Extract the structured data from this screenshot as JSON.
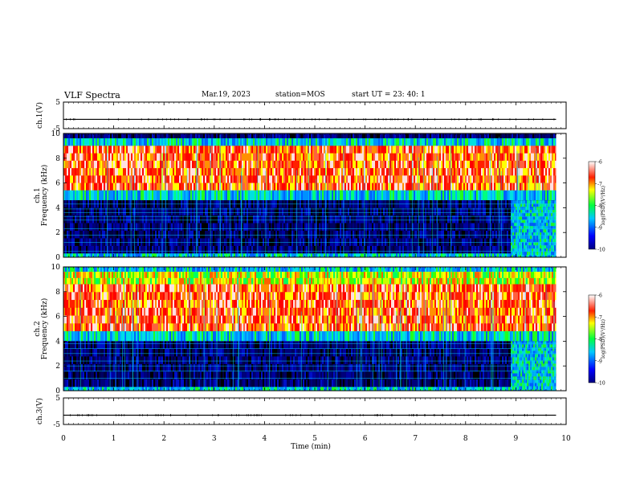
{
  "header": {
    "title": "VLF Spectra",
    "date": "Mar.19, 2023",
    "station": "station=MOS",
    "start": "start  UT  =   23: 40: 1"
  },
  "chart_data": [
    {
      "type": "line",
      "panel": "waveform-ch1",
      "ylabel": "ch.1(V)",
      "ylim": [
        -5,
        5
      ],
      "yticks": [
        "5",
        "-5"
      ],
      "xlim": [
        0,
        10
      ],
      "series": [
        {
          "x": [
            0,
            9.8
          ],
          "values": [
            -1.5,
            -1.5
          ]
        }
      ]
    },
    {
      "type": "heatmap",
      "panel": "spectrogram-ch1",
      "ylabel": "ch.1 Frequency (kHz)",
      "ylim": [
        0,
        10
      ],
      "yticks": [
        "0",
        "2",
        "4",
        "6",
        "8",
        "10"
      ],
      "xlim": [
        0,
        10
      ],
      "data_xmax": 9.8,
      "bands": [
        {
          "f0": 9.6,
          "f1": 10.0,
          "level": "low"
        },
        {
          "f0": 9.0,
          "f1": 9.6,
          "level": "mid"
        },
        {
          "f0": 5.4,
          "f1": 9.0,
          "level": "high"
        },
        {
          "f0": 4.6,
          "f1": 5.4,
          "level": "mid"
        },
        {
          "f0": 0.3,
          "f1": 4.6,
          "level": "low"
        },
        {
          "f0": 0.0,
          "f1": 0.3,
          "level": "mid"
        }
      ],
      "lines_khz": [
        0.5,
        1.2,
        1.8,
        2.3,
        3.0,
        3.3,
        3.6,
        3.9,
        4.3
      ],
      "event": {
        "t_start": 8.9,
        "f0": 0.3,
        "f1": 4.6,
        "level": "mid"
      },
      "colorbar": {
        "label": "log(PSD)(V²/Hz)",
        "range": [
          -10,
          -6
        ],
        "ticks": [
          "-6",
          "-7",
          "-8",
          "-9",
          "-10"
        ]
      }
    },
    {
      "type": "heatmap",
      "panel": "spectrogram-ch2",
      "ylabel": "ch.2 Frequency (kHz)",
      "ylim": [
        0,
        10
      ],
      "yticks": [
        "0",
        "2",
        "4",
        "6",
        "8",
        "10"
      ],
      "xlim": [
        0,
        10
      ],
      "data_xmax": 9.8,
      "bands": [
        {
          "f0": 9.6,
          "f1": 10.0,
          "level": "mid"
        },
        {
          "f0": 8.6,
          "f1": 9.6,
          "level": "upper"
        },
        {
          "f0": 4.8,
          "f1": 8.6,
          "level": "high"
        },
        {
          "f0": 4.0,
          "f1": 4.8,
          "level": "mid"
        },
        {
          "f0": 0.3,
          "f1": 4.0,
          "level": "low"
        },
        {
          "f0": 0.0,
          "f1": 0.3,
          "level": "mid"
        }
      ],
      "lines_khz": [
        1.0,
        1.6,
        2.0,
        2.4,
        3.0,
        3.4,
        3.8
      ],
      "event": {
        "t_start": 8.9,
        "f0": 0.3,
        "f1": 4.0,
        "level": "mid"
      },
      "colorbar": {
        "label": "log(PSD)(V²/Hz)",
        "range": [
          -10,
          -6
        ],
        "ticks": [
          "-6",
          "-7",
          "-8",
          "-9",
          "-10"
        ]
      }
    },
    {
      "type": "line",
      "panel": "waveform-ch3",
      "ylabel": "ch.3(V)",
      "ylim": [
        -5,
        5
      ],
      "yticks": [
        "5",
        "-5"
      ],
      "xlim": [
        0,
        10
      ],
      "xlabel": "Time (min)",
      "xticks": [
        "0",
        "1",
        "2",
        "3",
        "4",
        "5",
        "6",
        "7",
        "8",
        "9",
        "10"
      ],
      "series": [
        {
          "x": [
            0,
            9.8
          ],
          "values": [
            -1.5,
            -1.5
          ]
        }
      ]
    }
  ]
}
